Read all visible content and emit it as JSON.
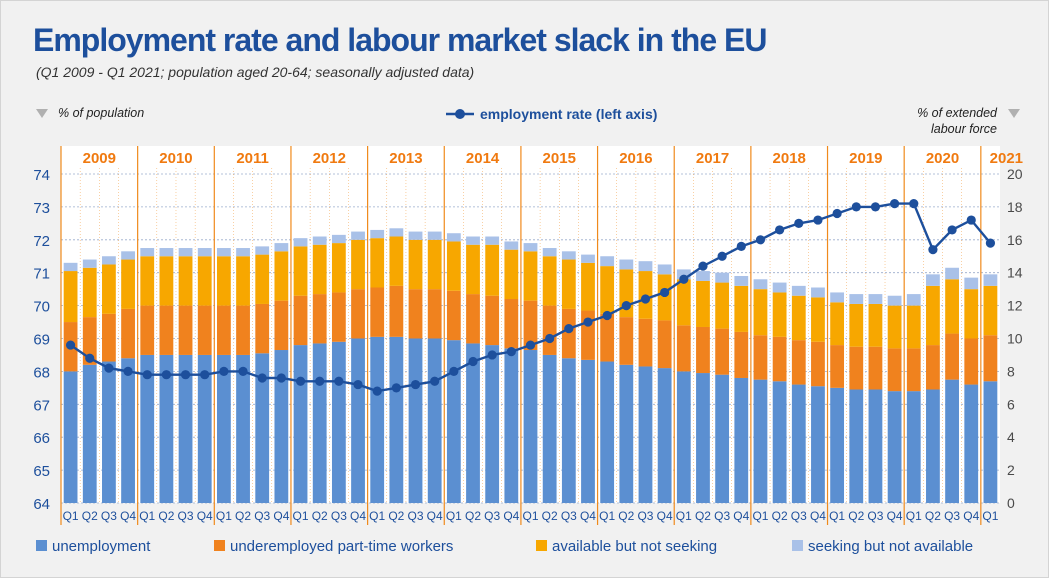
{
  "chart_data": {
    "type": "bar",
    "title": "Employment rate and labour market slack in the EU",
    "subtitle": "(Q1 2009 - Q1 2021; population aged 20-64; seasonally adjusted data)",
    "left_axis_label": "% of population",
    "right_axis_label_line1": "% of extended",
    "right_axis_label_line2": "labour force",
    "line_legend": "employment rate (left axis)",
    "left_ylim": [
      64,
      74
    ],
    "left_ticks": [
      "64",
      "65",
      "66",
      "67",
      "68",
      "69",
      "70",
      "71",
      "72",
      "73",
      "74"
    ],
    "right_ylim": [
      0,
      20
    ],
    "right_ticks": [
      "0",
      "2",
      "4",
      "6",
      "8",
      "10",
      "12",
      "14",
      "16",
      "18",
      "20"
    ],
    "years": [
      "2009",
      "2010",
      "2011",
      "2012",
      "2013",
      "2014",
      "2015",
      "2016",
      "2017",
      "2018",
      "2019",
      "2020",
      "2021"
    ],
    "quarter_labels": [
      "Q1",
      "Q2",
      "Q3",
      "Q4",
      "Q1",
      "Q2",
      "Q3",
      "Q4",
      "Q1",
      "Q2",
      "Q3",
      "Q4",
      "Q1",
      "Q2",
      "Q3",
      "Q4",
      "Q1",
      "Q2",
      "Q3",
      "Q4",
      "Q1",
      "Q2",
      "Q3",
      "Q4",
      "Q1",
      "Q2",
      "Q3",
      "Q4",
      "Q1",
      "Q2",
      "Q3",
      "Q4",
      "Q1",
      "Q2",
      "Q3",
      "Q4",
      "Q1",
      "Q2",
      "Q3",
      "Q4",
      "Q1",
      "Q2",
      "Q3",
      "Q4",
      "Q1",
      "Q2",
      "Q3",
      "Q4",
      "Q1"
    ],
    "colors": {
      "unemployment": "#5b8fd1",
      "underemployed": "#f0821e",
      "available": "#f7a700",
      "seeking": "#a9c1e8",
      "line": "#1d4f9c",
      "year_sep": "#f08a1c",
      "title": "#1d4f9c",
      "grid": "#9aaccc"
    },
    "grid": true,
    "legend_placement": "bottom",
    "series": [
      {
        "name": "unemployment",
        "key": "unemployment",
        "values": [
          8.0,
          8.4,
          8.6,
          8.8,
          9.0,
          9.0,
          9.0,
          9.0,
          9.0,
          9.0,
          9.1,
          9.3,
          9.6,
          9.7,
          9.8,
          10.0,
          10.1,
          10.1,
          10.0,
          10.0,
          9.9,
          9.7,
          9.6,
          9.4,
          9.3,
          9.0,
          8.8,
          8.7,
          8.6,
          8.4,
          8.3,
          8.2,
          8.0,
          7.9,
          7.8,
          7.6,
          7.5,
          7.4,
          7.2,
          7.1,
          7.0,
          6.9,
          6.9,
          6.8,
          6.8,
          6.9,
          7.5,
          7.2,
          7.4
        ]
      },
      {
        "name": "underemployed part-time workers",
        "key": "underemployed",
        "values": [
          3.0,
          2.9,
          2.9,
          3.0,
          3.0,
          3.0,
          3.0,
          3.0,
          3.0,
          3.0,
          3.0,
          3.0,
          3.0,
          3.0,
          3.0,
          3.0,
          3.0,
          3.1,
          3.0,
          3.0,
          3.0,
          3.0,
          3.0,
          3.0,
          3.0,
          3.0,
          3.0,
          3.0,
          2.9,
          2.9,
          2.9,
          2.9,
          2.8,
          2.8,
          2.8,
          2.8,
          2.7,
          2.7,
          2.7,
          2.7,
          2.6,
          2.6,
          2.6,
          2.6,
          2.6,
          2.7,
          2.8,
          2.8,
          2.8
        ]
      },
      {
        "name": "available but not seeking",
        "key": "available",
        "values": [
          3.1,
          3.0,
          3.0,
          3.0,
          3.0,
          3.0,
          3.0,
          3.0,
          3.0,
          3.0,
          3.0,
          3.0,
          3.0,
          3.0,
          3.0,
          3.0,
          3.0,
          3.0,
          3.0,
          3.0,
          3.0,
          3.0,
          3.1,
          3.0,
          3.0,
          3.0,
          3.0,
          2.9,
          2.9,
          2.9,
          2.9,
          2.8,
          2.8,
          2.8,
          2.8,
          2.8,
          2.8,
          2.7,
          2.7,
          2.7,
          2.6,
          2.6,
          2.6,
          2.6,
          2.6,
          3.6,
          3.3,
          3.0,
          3.0
        ]
      },
      {
        "name": "seeking but not available",
        "key": "seeking",
        "values": [
          0.5,
          0.5,
          0.5,
          0.5,
          0.5,
          0.5,
          0.5,
          0.5,
          0.5,
          0.5,
          0.5,
          0.5,
          0.5,
          0.5,
          0.5,
          0.5,
          0.5,
          0.5,
          0.5,
          0.5,
          0.5,
          0.5,
          0.5,
          0.5,
          0.5,
          0.5,
          0.5,
          0.5,
          0.6,
          0.6,
          0.6,
          0.6,
          0.6,
          0.6,
          0.6,
          0.6,
          0.6,
          0.6,
          0.6,
          0.6,
          0.6,
          0.6,
          0.6,
          0.6,
          0.7,
          0.7,
          0.7,
          0.7,
          0.7
        ]
      },
      {
        "name": "employment rate",
        "key": "employment",
        "axis": "left",
        "values": [
          68.8,
          68.4,
          68.1,
          68.0,
          67.9,
          67.9,
          67.9,
          67.9,
          68.0,
          68.0,
          67.8,
          67.8,
          67.7,
          67.7,
          67.7,
          67.6,
          67.4,
          67.5,
          67.6,
          67.7,
          68.0,
          68.3,
          68.5,
          68.6,
          68.8,
          69.0,
          69.3,
          69.5,
          69.7,
          70.0,
          70.2,
          70.4,
          70.8,
          71.2,
          71.5,
          71.8,
          72.0,
          72.3,
          72.5,
          72.6,
          72.8,
          73.0,
          73.0,
          73.1,
          73.1,
          71.7,
          72.3,
          72.6,
          71.9
        ]
      }
    ]
  }
}
